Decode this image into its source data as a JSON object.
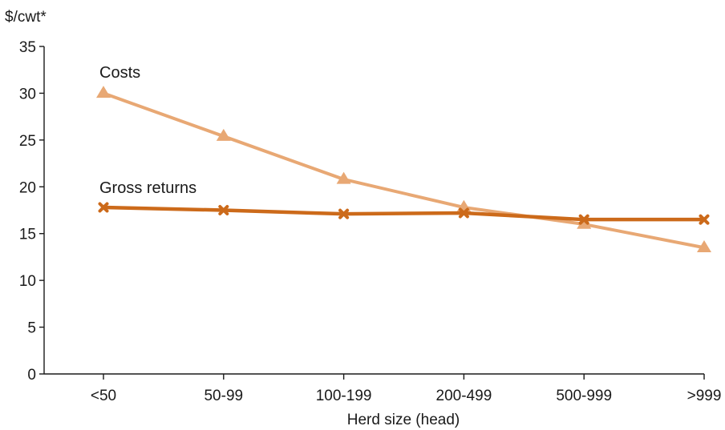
{
  "chart_data": {
    "type": "line",
    "ylabel": "$/cwt*",
    "xlabel": "Herd size (head)",
    "categories": [
      "<50",
      "50-99",
      "100-199",
      "200-499",
      "500-999",
      ">999"
    ],
    "ylim": [
      0,
      35
    ],
    "yticks": [
      0,
      5,
      10,
      15,
      20,
      25,
      30,
      35
    ],
    "grid": false,
    "legend": "none",
    "series": [
      {
        "name": "Costs",
        "values": [
          30.0,
          25.4,
          20.8,
          17.8,
          16.0,
          13.5
        ],
        "color": "#e8a874",
        "marker": "triangle"
      },
      {
        "name": "Gross returns",
        "values": [
          17.8,
          17.5,
          17.1,
          17.2,
          16.5,
          16.5
        ],
        "color": "#cc6a1a",
        "marker": "x"
      }
    ]
  }
}
